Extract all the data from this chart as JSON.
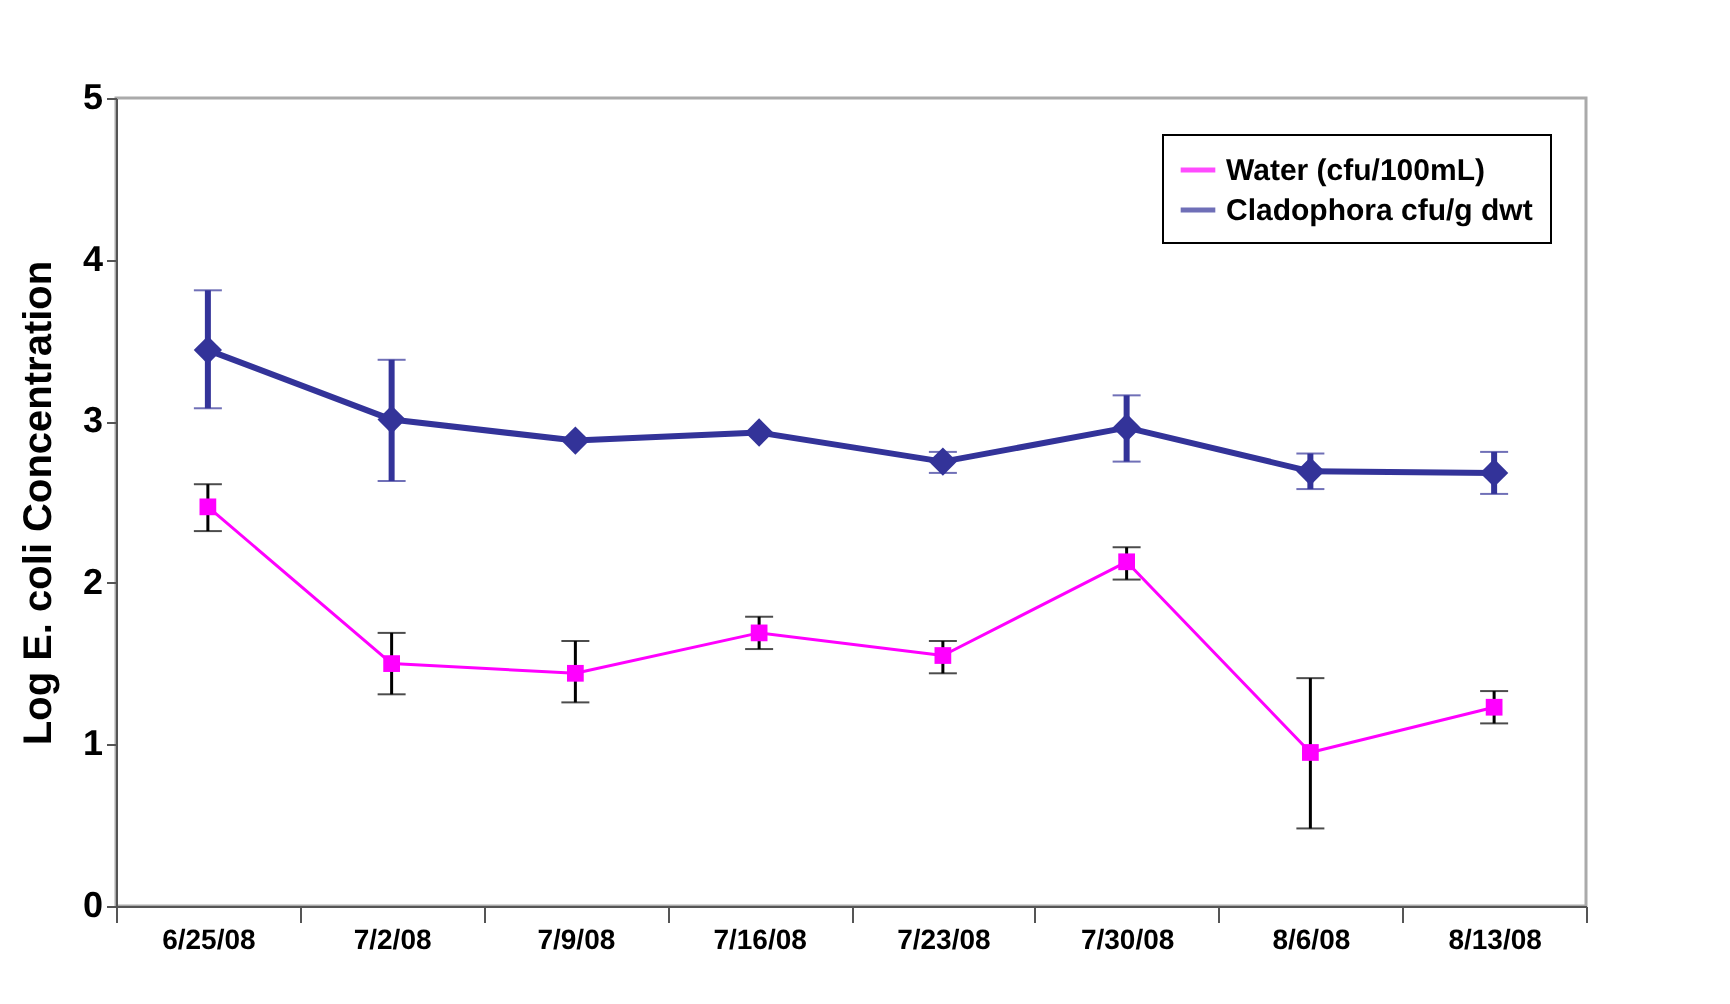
{
  "chart_data": {
    "type": "line",
    "ylabel": "Log E. coli Concentration",
    "categories": [
      "6/25/08",
      "7/2/08",
      "7/9/08",
      "7/16/08",
      "7/23/08",
      "7/30/08",
      "8/6/08",
      "8/13/08"
    ],
    "series": [
      {
        "name": "Water  (cfu/100mL)",
        "color": "#ff00ff",
        "marker": "square",
        "values": [
          2.47,
          1.5,
          1.44,
          1.69,
          1.55,
          2.13,
          0.95,
          1.23
        ],
        "errors": [
          [
            2.32,
            2.61
          ],
          [
            1.31,
            1.69
          ],
          [
            1.26,
            1.64
          ],
          [
            1.59,
            1.79
          ],
          [
            1.44,
            1.64
          ],
          [
            2.02,
            2.22
          ],
          [
            0.48,
            1.41
          ],
          [
            1.13,
            1.33
          ]
        ]
      },
      {
        "name": "Cladophora cfu/g dwt",
        "color": "#333399",
        "marker": "diamond",
        "values": [
          3.44,
          3.01,
          2.88,
          2.93,
          2.75,
          2.96,
          2.69,
          2.68
        ],
        "errors": [
          [
            3.08,
            3.81
          ],
          [
            2.63,
            3.38
          ],
          null,
          null,
          [
            2.68,
            2.81
          ],
          [
            2.75,
            3.16
          ],
          [
            2.58,
            2.8
          ],
          [
            2.55,
            2.81
          ]
        ]
      }
    ],
    "ylim": [
      0,
      5
    ],
    "yticks": [
      0,
      1,
      2,
      3,
      4,
      5
    ],
    "grid": false,
    "legend": "top right"
  }
}
